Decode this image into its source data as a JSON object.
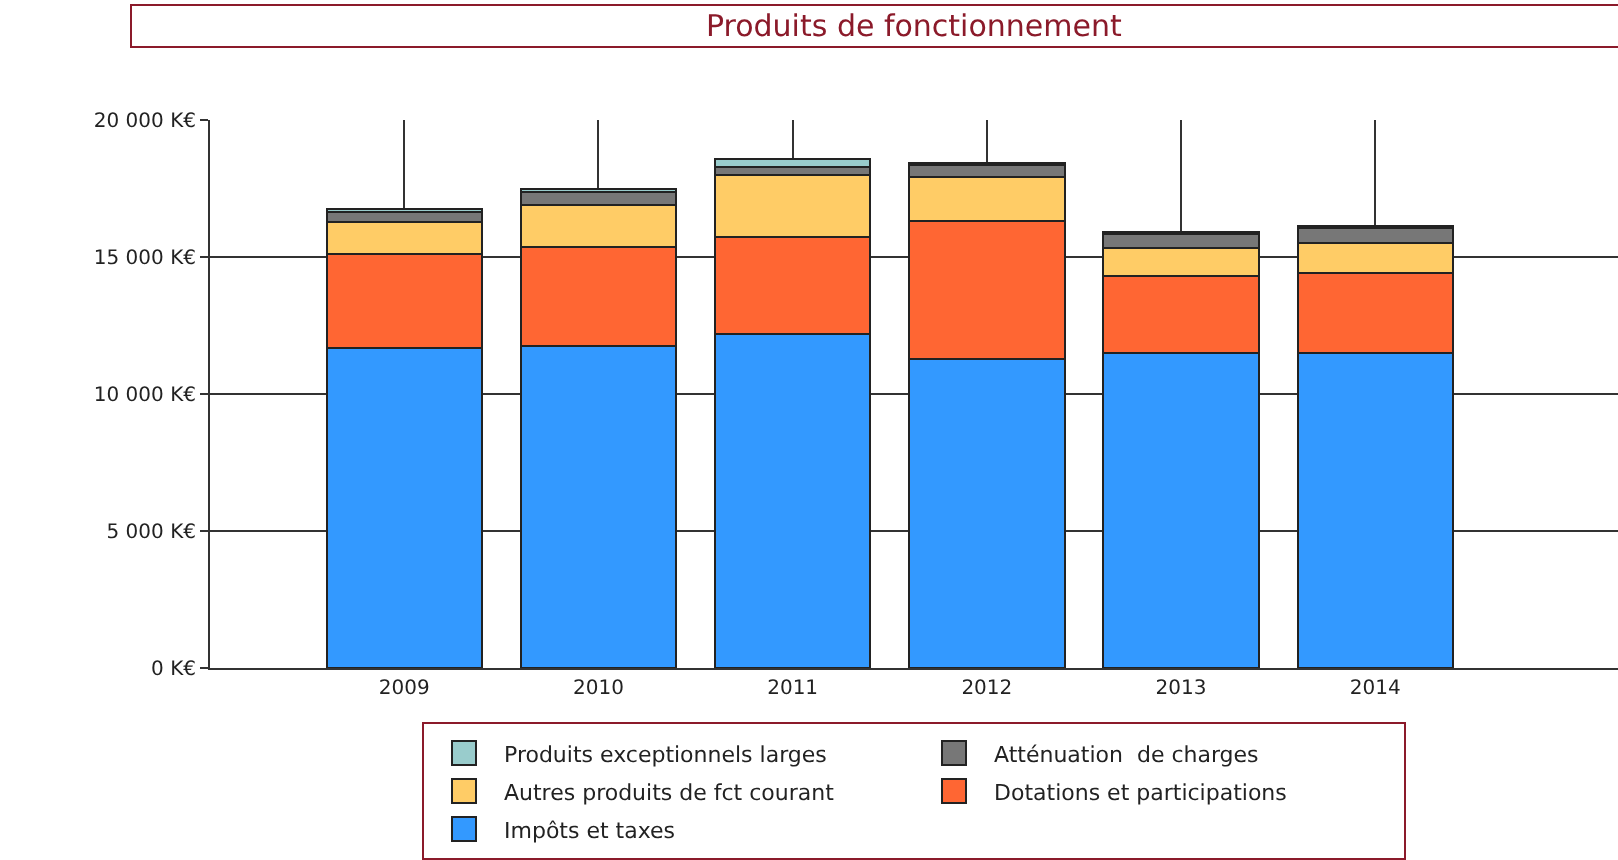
{
  "chart_data": {
    "type": "bar",
    "title": "Produits de fonctionnement",
    "stacked": true,
    "categories": [
      "2009",
      "2010",
      "2011",
      "2012",
      "2013",
      "2014"
    ],
    "series": [
      {
        "name": "Impôts et taxes",
        "color": "#3399ff",
        "values": [
          11680,
          11770,
          12180,
          11260,
          11490,
          11490
        ]
      },
      {
        "name": "Dotations et participations",
        "color": "#ff6633",
        "values": [
          3420,
          3590,
          3560,
          5060,
          2830,
          2940
        ]
      },
      {
        "name": "Autres produits de fct courant",
        "color": "#ffcc66",
        "values": [
          1180,
          1540,
          2240,
          1610,
          1010,
          1090
        ]
      },
      {
        "name": "Atténuation  de charges",
        "color": "#777777",
        "values": [
          380,
          480,
          300,
          420,
          520,
          540
        ]
      },
      {
        "name": "Produits exceptionnels larges",
        "color": "#99cccc",
        "values": [
          80,
          120,
          290,
          80,
          80,
          80
        ]
      }
    ],
    "ylim": [
      0,
      20000
    ],
    "yticks": [
      {
        "value": 0,
        "label": "0 K€"
      },
      {
        "value": 5000,
        "label": "5 000 K€"
      },
      {
        "value": 10000,
        "label": "10 000 K€"
      },
      {
        "value": 15000,
        "label": "15 000 K€"
      },
      {
        "value": 20000,
        "label": "20 000 K€"
      }
    ],
    "grid": true,
    "legend": "bottom"
  }
}
